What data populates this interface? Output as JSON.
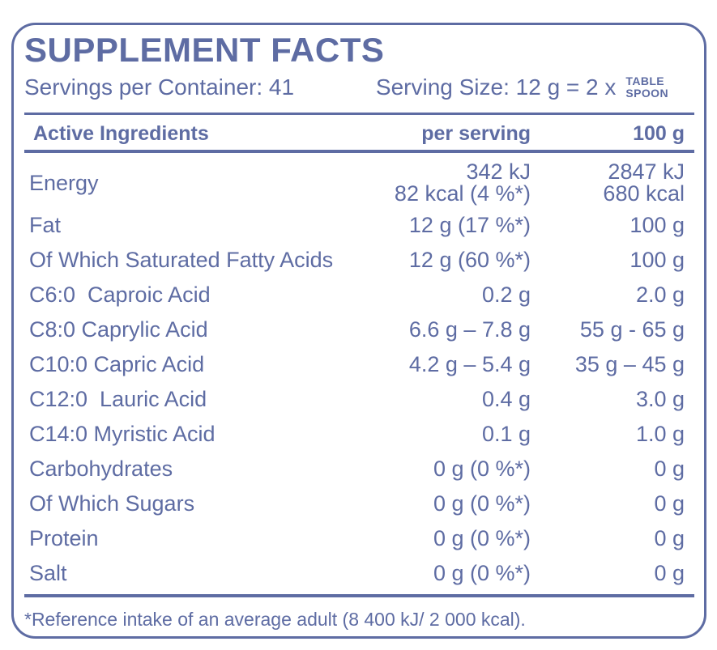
{
  "colors": {
    "accent": "#5e6ca3",
    "background": "#ffffff"
  },
  "label": {
    "title": "SUPPLEMENT FACTS",
    "servings_per_container": "Servings per Container: 41",
    "serving_size_text": "Serving Size: 12 g = 2 x",
    "serving_size_unit_line1": "TABLE",
    "serving_size_unit_line2": "SPOON",
    "footnote": "*Reference intake of an average adult (8 400 kJ/ 2 000 kcal)."
  },
  "table": {
    "headers": [
      "Active Ingredients",
      "per serving",
      "100 g"
    ],
    "energy_row": {
      "label": "Energy",
      "per_serving_lines": [
        "342 kJ",
        "82 kcal (4 %*)"
      ],
      "per_100g_lines": [
        "2847 kJ",
        "680 kcal"
      ]
    },
    "rows": [
      {
        "label": "Fat",
        "per_serving": "12 g (17 %*)",
        "per_100g": "100 g"
      },
      {
        "label": "Of Which Saturated Fatty Acids",
        "per_serving": "12 g (60 %*)",
        "per_100g": "100 g"
      },
      {
        "label": "C6:0  Caproic Acid",
        "per_serving": "0.2 g",
        "per_100g": "2.0 g"
      },
      {
        "label": "C8:0 Caprylic Acid",
        "per_serving": "6.6 g – 7.8 g",
        "per_100g": "55 g - 65 g"
      },
      {
        "label": "C10:0 Capric Acid",
        "per_serving": "4.2 g – 5.4 g",
        "per_100g": "35 g – 45 g"
      },
      {
        "label": "C12:0  Lauric Acid",
        "per_serving": "0.4 g",
        "per_100g": "3.0 g"
      },
      {
        "label": "C14:0 Myristic Acid",
        "per_serving": "0.1 g",
        "per_100g": "1.0 g"
      },
      {
        "label": "Carbohydrates",
        "per_serving": "0 g (0 %*)",
        "per_100g": "0 g"
      },
      {
        "label": "Of Which Sugars",
        "per_serving": "0 g (0 %*)",
        "per_100g": "0 g"
      },
      {
        "label": "Protein",
        "per_serving": "0 g (0 %*)",
        "per_100g": "0 g"
      },
      {
        "label": "Salt",
        "per_serving": "0 g (0 %*)",
        "per_100g": "0 g"
      }
    ]
  }
}
